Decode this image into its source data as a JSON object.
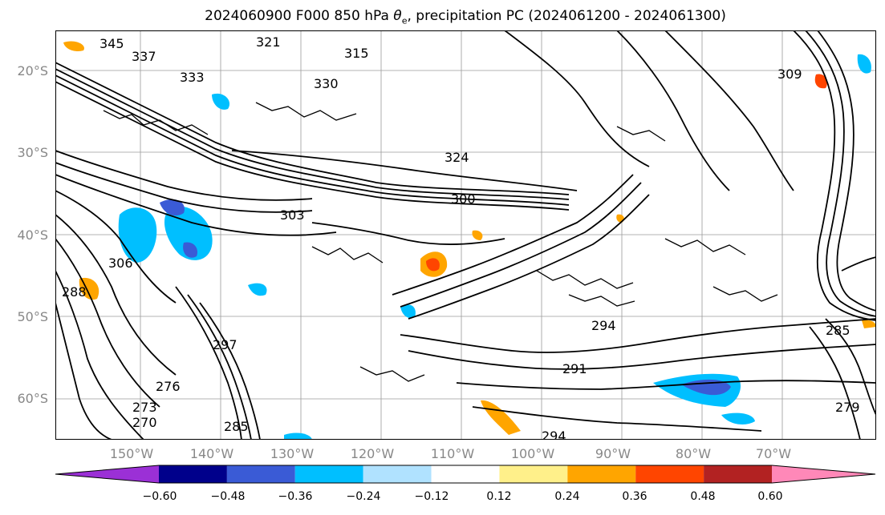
{
  "title": {
    "prefix": "2024060900 F000 850 hPa ",
    "theta": "θ",
    "theta_sub": "e",
    "suffix": ", precipitation PC (2024061200 - 2024061300)"
  },
  "map": {
    "lat_labels": [
      "20°S",
      "30°S",
      "40°S",
      "50°S",
      "60°S"
    ],
    "lon_labels": [
      "150°W",
      "140°W",
      "130°W",
      "120°W",
      "110°W",
      "100°W",
      "90°W",
      "80°W",
      "70°W"
    ],
    "contour_labels": [
      "345",
      "337",
      "333",
      "321",
      "315",
      "309",
      "330",
      "324",
      "300",
      "303",
      "306",
      "288",
      "297",
      "291",
      "276",
      "273",
      "270",
      "285",
      "294",
      "279"
    ],
    "contour_color": "#000000",
    "grid_color": "#9a9a9a"
  },
  "colorbar": {
    "ticks": [
      "−0.60",
      "−0.48",
      "−0.36",
      "−0.24",
      "−0.12",
      "0.12",
      "0.24",
      "0.36",
      "0.48",
      "0.60"
    ],
    "colors": [
      "#9b30d6",
      "#00008b",
      "#3a5bd6",
      "#00bfff",
      "#b0e2ff",
      "#ffffff",
      "#fff08a",
      "#ffa500",
      "#ff4500",
      "#b22222",
      "#ff88b8"
    ]
  }
}
